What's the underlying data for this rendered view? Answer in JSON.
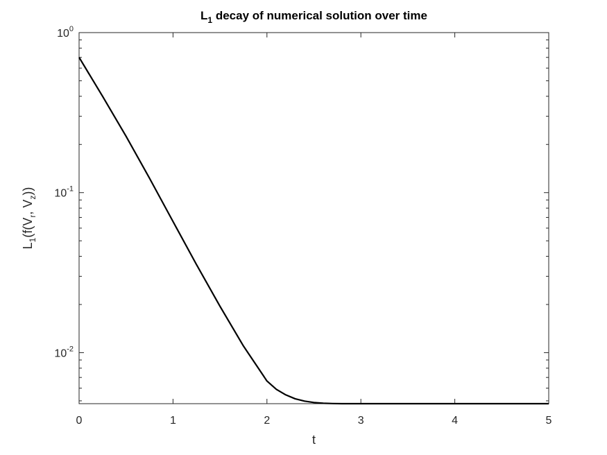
{
  "chart_data": {
    "type": "line",
    "title": "L1 decay of numerical solution over time",
    "title_parts": {
      "main": "L",
      "sub": "1",
      "rest": " decay of numerical solution over time"
    },
    "xlabel": "t",
    "ylabel": "L1(f(Vr, Vz))",
    "ylabel_parts": [
      {
        "t": "L",
        "s": "n"
      },
      {
        "t": "1",
        "s": "sub"
      },
      {
        "t": "(f(V",
        "s": "n"
      },
      {
        "t": "r",
        "s": "sub"
      },
      {
        "t": ", V",
        "s": "n"
      },
      {
        "t": "z",
        "s": "sub"
      },
      {
        "t": "))",
        "s": "n"
      }
    ],
    "xlim": [
      0,
      5
    ],
    "ylim": [
      0.0048,
      1
    ],
    "yscale": "log",
    "grid": false,
    "box": true,
    "line_color": "#000000",
    "xticks": [
      {
        "value": 0,
        "label": "0"
      },
      {
        "value": 1,
        "label": "1"
      },
      {
        "value": 2,
        "label": "2"
      },
      {
        "value": 3,
        "label": "3"
      },
      {
        "value": 4,
        "label": "4"
      },
      {
        "value": 5,
        "label": "5"
      }
    ],
    "yticks": [
      {
        "value": 0.01,
        "base": "10",
        "exp": "-2"
      },
      {
        "value": 0.1,
        "base": "10",
        "exp": "-1"
      },
      {
        "value": 1,
        "base": "10",
        "exp": "0"
      }
    ],
    "series": [
      {
        "x": [
          0,
          0.25,
          0.5,
          0.75,
          1.0,
          1.25,
          1.5,
          1.75,
          2.0,
          2.1,
          2.2,
          2.3,
          2.4,
          2.5,
          2.6,
          2.7,
          2.8,
          2.9,
          3.0,
          3.5,
          4.0,
          4.5,
          5.0
        ],
        "y": [
          0.7,
          0.4,
          0.225,
          0.123,
          0.066,
          0.0355,
          0.0195,
          0.011,
          0.00665,
          0.0059,
          0.00545,
          0.00515,
          0.00498,
          0.00488,
          0.00483,
          0.00481,
          0.0048,
          0.0048,
          0.0048,
          0.0048,
          0.0048,
          0.0048,
          0.0048
        ]
      }
    ]
  }
}
